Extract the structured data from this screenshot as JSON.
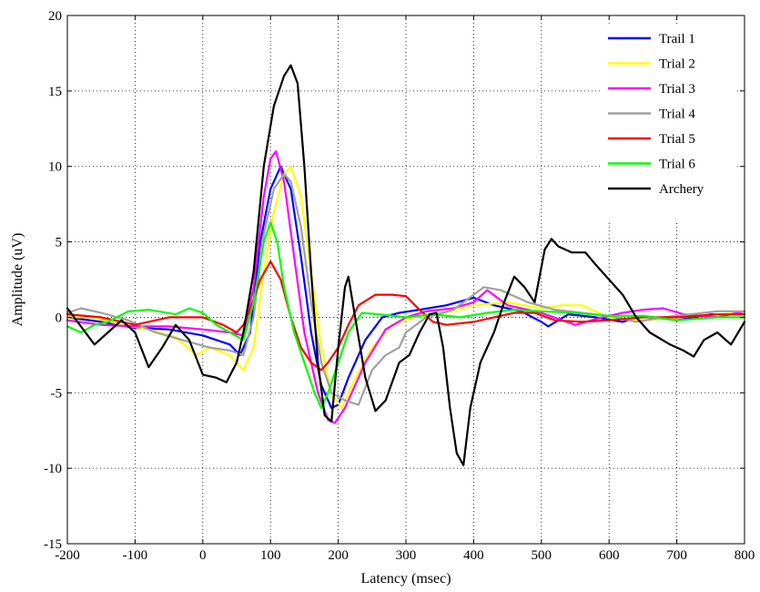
{
  "chart_data": {
    "type": "line",
    "title": "",
    "xlabel": "Latency (msec)",
    "ylabel": "Amplitude (uV)",
    "xlim": [
      -200,
      800
    ],
    "ylim": [
      -15,
      20
    ],
    "xticks": [
      -200,
      -100,
      0,
      100,
      200,
      300,
      400,
      500,
      600,
      700,
      800
    ],
    "yticks": [
      -15,
      -10,
      -5,
      0,
      5,
      10,
      15,
      20
    ],
    "grid": true,
    "legend_position": "top-right",
    "series": [
      {
        "name": "Trail 1",
        "color": "#0000ff",
        "points": [
          [
            -200,
            0
          ],
          [
            -150,
            -0.3
          ],
          [
            -100,
            -0.7
          ],
          [
            -50,
            -0.8
          ],
          [
            0,
            -1.2
          ],
          [
            40,
            -1.8
          ],
          [
            55,
            -2.5
          ],
          [
            70,
            -1
          ],
          [
            85,
            5
          ],
          [
            100,
            8.5
          ],
          [
            115,
            10
          ],
          [
            130,
            8.5
          ],
          [
            145,
            4
          ],
          [
            160,
            -1
          ],
          [
            175,
            -4.5
          ],
          [
            190,
            -6
          ],
          [
            200,
            -5.8
          ],
          [
            215,
            -4
          ],
          [
            240,
            -1.5
          ],
          [
            265,
            0
          ],
          [
            290,
            0.3
          ],
          [
            320,
            0.5
          ],
          [
            360,
            0.8
          ],
          [
            400,
            1.3
          ],
          [
            430,
            0.8
          ],
          [
            470,
            0.4
          ],
          [
            500,
            -0.3
          ],
          [
            510,
            -0.6
          ],
          [
            540,
            0.2
          ],
          [
            580,
            0
          ],
          [
            620,
            -0.3
          ],
          [
            650,
            0.1
          ],
          [
            700,
            -0.2
          ],
          [
            750,
            0.2
          ],
          [
            800,
            0.2
          ]
        ]
      },
      {
        "name": "Trial 2",
        "color": "#ffff00",
        "points": [
          [
            -200,
            0
          ],
          [
            -160,
            0
          ],
          [
            -120,
            -0.5
          ],
          [
            -80,
            -0.8
          ],
          [
            -40,
            -1.3
          ],
          [
            -10,
            -2.5
          ],
          [
            10,
            -2
          ],
          [
            40,
            -2.5
          ],
          [
            60,
            -3.5
          ],
          [
            75,
            -2
          ],
          [
            90,
            3
          ],
          [
            105,
            7
          ],
          [
            120,
            9.5
          ],
          [
            130,
            10
          ],
          [
            145,
            8
          ],
          [
            160,
            3
          ],
          [
            175,
            -2
          ],
          [
            190,
            -5
          ],
          [
            205,
            -6
          ],
          [
            220,
            -4.5
          ],
          [
            250,
            -2
          ],
          [
            280,
            -0.5
          ],
          [
            310,
            0
          ],
          [
            350,
            0.2
          ],
          [
            400,
            0.8
          ],
          [
            450,
            1
          ],
          [
            500,
            0.6
          ],
          [
            530,
            0.8
          ],
          [
            560,
            0.8
          ],
          [
            600,
            0
          ],
          [
            650,
            -0.2
          ],
          [
            700,
            0
          ],
          [
            760,
            0.2
          ],
          [
            800,
            0.3
          ]
        ]
      },
      {
        "name": "Trial 3",
        "color": "#ff00ff",
        "points": [
          [
            -200,
            -0.2
          ],
          [
            -150,
            -0.5
          ],
          [
            -100,
            -0.6
          ],
          [
            -50,
            -0.6
          ],
          [
            0,
            -0.8
          ],
          [
            40,
            -1
          ],
          [
            60,
            -1.2
          ],
          [
            75,
            2
          ],
          [
            90,
            8
          ],
          [
            100,
            10.5
          ],
          [
            108,
            11
          ],
          [
            120,
            9
          ],
          [
            135,
            4
          ],
          [
            150,
            -1
          ],
          [
            170,
            -5
          ],
          [
            185,
            -6.8
          ],
          [
            195,
            -7
          ],
          [
            210,
            -6
          ],
          [
            240,
            -3
          ],
          [
            270,
            -0.8
          ],
          [
            300,
            0
          ],
          [
            330,
            0.4
          ],
          [
            370,
            0.6
          ],
          [
            400,
            1
          ],
          [
            420,
            1.8
          ],
          [
            450,
            0.8
          ],
          [
            500,
            0.3
          ],
          [
            550,
            -0.5
          ],
          [
            590,
            0
          ],
          [
            620,
            0.3
          ],
          [
            650,
            0.5
          ],
          [
            680,
            0.6
          ],
          [
            710,
            0.2
          ],
          [
            760,
            0
          ],
          [
            800,
            0.4
          ]
        ]
      },
      {
        "name": "Trial 4",
        "color": "#a0a0a0",
        "points": [
          [
            -200,
            0.3
          ],
          [
            -180,
            0.6
          ],
          [
            -150,
            0.3
          ],
          [
            -110,
            -0.2
          ],
          [
            -70,
            -1
          ],
          [
            -30,
            -1.5
          ],
          [
            10,
            -2
          ],
          [
            40,
            -2.2
          ],
          [
            60,
            -2.5
          ],
          [
            75,
            0
          ],
          [
            90,
            5.5
          ],
          [
            105,
            8.5
          ],
          [
            120,
            9.5
          ],
          [
            130,
            9
          ],
          [
            145,
            6
          ],
          [
            160,
            1
          ],
          [
            175,
            -3
          ],
          [
            190,
            -5
          ],
          [
            210,
            -5.5
          ],
          [
            230,
            -5.8
          ],
          [
            250,
            -3.5
          ],
          [
            270,
            -2.5
          ],
          [
            290,
            -2
          ],
          [
            300,
            -1
          ],
          [
            330,
            0
          ],
          [
            370,
            0.5
          ],
          [
            400,
            1.5
          ],
          [
            415,
            2
          ],
          [
            440,
            1.8
          ],
          [
            480,
            1
          ],
          [
            520,
            0.5
          ],
          [
            560,
            0.3
          ],
          [
            600,
            0.1
          ],
          [
            640,
            -0.3
          ],
          [
            680,
            0
          ],
          [
            720,
            0.2
          ],
          [
            760,
            0.4
          ],
          [
            800,
            0.4
          ]
        ]
      },
      {
        "name": "Trial 5",
        "color": "#ff0000",
        "points": [
          [
            -200,
            0.2
          ],
          [
            -150,
            0
          ],
          [
            -100,
            -0.5
          ],
          [
            -50,
            0
          ],
          [
            0,
            0
          ],
          [
            30,
            -0.5
          ],
          [
            50,
            -1
          ],
          [
            60,
            -0.5
          ],
          [
            70,
            0.5
          ],
          [
            85,
            2.5
          ],
          [
            100,
            3.7
          ],
          [
            115,
            2.5
          ],
          [
            130,
            0
          ],
          [
            145,
            -2
          ],
          [
            160,
            -3
          ],
          [
            175,
            -3.5
          ],
          [
            185,
            -3
          ],
          [
            200,
            -2
          ],
          [
            215,
            -0.5
          ],
          [
            230,
            0.8
          ],
          [
            255,
            1.5
          ],
          [
            280,
            1.5
          ],
          [
            300,
            1.4
          ],
          [
            320,
            0.5
          ],
          [
            340,
            -0.3
          ],
          [
            360,
            -0.5
          ],
          [
            400,
            -0.3
          ],
          [
            430,
            0
          ],
          [
            460,
            0.3
          ],
          [
            490,
            0.3
          ],
          [
            520,
            -0.2
          ],
          [
            560,
            -0.3
          ],
          [
            600,
            -0.2
          ],
          [
            650,
            0
          ],
          [
            700,
            0
          ],
          [
            760,
            0.2
          ],
          [
            800,
            0.2
          ]
        ]
      },
      {
        "name": "Trial 6",
        "color": "#00ff00",
        "points": [
          [
            -200,
            -0.6
          ],
          [
            -180,
            -1
          ],
          [
            -160,
            -0.5
          ],
          [
            -140,
            -0.3
          ],
          [
            -110,
            0.4
          ],
          [
            -80,
            0.5
          ],
          [
            -40,
            0.2
          ],
          [
            -20,
            0.6
          ],
          [
            0,
            0.3
          ],
          [
            20,
            -0.5
          ],
          [
            40,
            -1
          ],
          [
            60,
            -1.5
          ],
          [
            75,
            1
          ],
          [
            90,
            5
          ],
          [
            100,
            6.3
          ],
          [
            110,
            5
          ],
          [
            120,
            2
          ],
          [
            135,
            -1
          ],
          [
            150,
            -3
          ],
          [
            165,
            -5
          ],
          [
            175,
            -6
          ],
          [
            185,
            -5
          ],
          [
            200,
            -3
          ],
          [
            215,
            -1
          ],
          [
            235,
            0.3
          ],
          [
            260,
            0.2
          ],
          [
            300,
            0
          ],
          [
            340,
            0.2
          ],
          [
            380,
            0
          ],
          [
            420,
            0.3
          ],
          [
            460,
            0.5
          ],
          [
            500,
            0.4
          ],
          [
            550,
            0.3
          ],
          [
            600,
            0.1
          ],
          [
            650,
            0.1
          ],
          [
            700,
            -0.2
          ],
          [
            760,
            0
          ],
          [
            800,
            0
          ]
        ]
      },
      {
        "name": "Archery",
        "color": "#000000",
        "points": [
          [
            -200,
            0.6
          ],
          [
            -185,
            -0.3
          ],
          [
            -160,
            -1.8
          ],
          [
            -140,
            -1
          ],
          [
            -120,
            -0.2
          ],
          [
            -100,
            -1
          ],
          [
            -80,
            -3.3
          ],
          [
            -60,
            -2
          ],
          [
            -40,
            -0.5
          ],
          [
            -20,
            -1.5
          ],
          [
            0,
            -3.8
          ],
          [
            20,
            -4
          ],
          [
            35,
            -4.3
          ],
          [
            50,
            -3
          ],
          [
            60,
            -1
          ],
          [
            75,
            3
          ],
          [
            90,
            10
          ],
          [
            105,
            14
          ],
          [
            120,
            16
          ],
          [
            130,
            16.7
          ],
          [
            140,
            15.5
          ],
          [
            150,
            10
          ],
          [
            160,
            3
          ],
          [
            170,
            -3
          ],
          [
            180,
            -6.5
          ],
          [
            190,
            -6.9
          ],
          [
            200,
            -2
          ],
          [
            210,
            2
          ],
          [
            215,
            2.7
          ],
          [
            225,
            0
          ],
          [
            240,
            -4
          ],
          [
            255,
            -6.2
          ],
          [
            270,
            -5.5
          ],
          [
            290,
            -3
          ],
          [
            305,
            -2.5
          ],
          [
            320,
            -1
          ],
          [
            335,
            0.2
          ],
          [
            345,
            0.3
          ],
          [
            355,
            -2
          ],
          [
            365,
            -6
          ],
          [
            375,
            -9
          ],
          [
            385,
            -9.8
          ],
          [
            395,
            -6
          ],
          [
            410,
            -3
          ],
          [
            430,
            -1
          ],
          [
            445,
            1
          ],
          [
            460,
            2.7
          ],
          [
            475,
            2
          ],
          [
            490,
            1
          ],
          [
            505,
            4.5
          ],
          [
            515,
            5.2
          ],
          [
            525,
            4.7
          ],
          [
            545,
            4.3
          ],
          [
            565,
            4.3
          ],
          [
            580,
            3.5
          ],
          [
            600,
            2.5
          ],
          [
            620,
            1.5
          ],
          [
            640,
            0
          ],
          [
            660,
            -1
          ],
          [
            690,
            -1.8
          ],
          [
            710,
            -2.2
          ],
          [
            725,
            -2.6
          ],
          [
            740,
            -1.5
          ],
          [
            760,
            -1
          ],
          [
            780,
            -1.8
          ],
          [
            800,
            -0.3
          ]
        ]
      }
    ]
  }
}
